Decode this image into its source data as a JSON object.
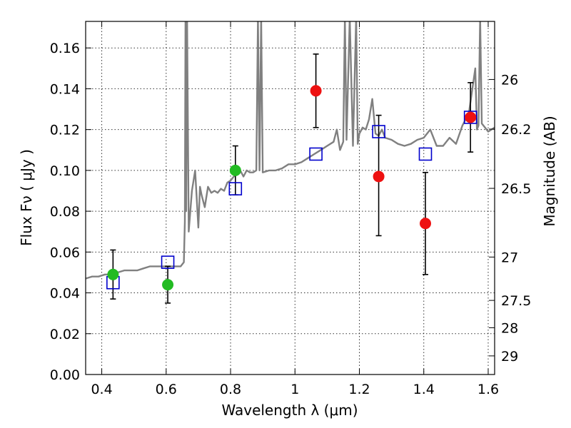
{
  "chart_data": {
    "type": "scatter",
    "title": "",
    "xlabel": "Wavelength  λ (μm)",
    "ylabel": "Flux  Fν  ( μJy )",
    "y2label": "Magnitude (AB)",
    "xlim": [
      0.35,
      1.62
    ],
    "ylim": [
      0.0,
      0.173
    ],
    "grid": true,
    "x_ticks": [
      0.4,
      0.6,
      0.8,
      1.0,
      1.2,
      1.4,
      1.6
    ],
    "x_tick_labels": [
      "0.4",
      "0.6",
      "0.8",
      "1",
      "1.2",
      "1.4",
      "1.6"
    ],
    "y_ticks": [
      0.0,
      0.02,
      0.04,
      0.06,
      0.08,
      0.1,
      0.12,
      0.14,
      0.16
    ],
    "y_tick_labels": [
      "0.00",
      "0.02",
      "0.04",
      "0.06",
      "0.08",
      "0.10",
      "0.12",
      "0.14",
      "0.16"
    ],
    "y2_ticks": [
      26,
      26.2,
      26.5,
      27,
      27.5,
      28,
      29
    ],
    "y2_tick_labels": [
      "26",
      "26.2",
      "26.5",
      "27",
      "27.5",
      "28",
      "29"
    ],
    "colors": {
      "spectrum": "#808080",
      "model": "#0000cc",
      "optical": "#22bb22",
      "infrared": "#ee1111",
      "errorbar": "#000000"
    },
    "series": [
      {
        "kind": "line",
        "style": "spectrum",
        "x": [
          0.35,
          0.37,
          0.39,
          0.41,
          0.43,
          0.45,
          0.47,
          0.49,
          0.51,
          0.53,
          0.55,
          0.57,
          0.59,
          0.61,
          0.63,
          0.645,
          0.655,
          0.658,
          0.66,
          0.662,
          0.665,
          0.67,
          0.68,
          0.69,
          0.7,
          0.705,
          0.71,
          0.72,
          0.73,
          0.74,
          0.75,
          0.76,
          0.77,
          0.78,
          0.79,
          0.8,
          0.81,
          0.82,
          0.83,
          0.84,
          0.85,
          0.86,
          0.87,
          0.88,
          0.885,
          0.89,
          0.895,
          0.9,
          0.92,
          0.94,
          0.96,
          0.98,
          1.0,
          1.02,
          1.04,
          1.06,
          1.08,
          1.1,
          1.12,
          1.13,
          1.14,
          1.15,
          1.155,
          1.16,
          1.17,
          1.18,
          1.19,
          1.195,
          1.2,
          1.21,
          1.22,
          1.23,
          1.24,
          1.25,
          1.26,
          1.27,
          1.28,
          1.3,
          1.32,
          1.34,
          1.36,
          1.38,
          1.4,
          1.42,
          1.44,
          1.46,
          1.48,
          1.5,
          1.52,
          1.54,
          1.56,
          1.565,
          1.57,
          1.575,
          1.58,
          1.59,
          1.6,
          1.62
        ],
        "y": [
          0.047,
          0.048,
          0.048,
          0.049,
          0.049,
          0.05,
          0.051,
          0.051,
          0.051,
          0.052,
          0.053,
          0.053,
          0.053,
          0.053,
          0.053,
          0.053,
          0.055,
          0.075,
          0.175,
          0.08,
          0.175,
          0.07,
          0.09,
          0.1,
          0.072,
          0.092,
          0.088,
          0.082,
          0.092,
          0.089,
          0.09,
          0.089,
          0.091,
          0.09,
          0.094,
          0.095,
          0.097,
          0.098,
          0.1,
          0.097,
          0.1,
          0.099,
          0.099,
          0.1,
          0.175,
          0.1,
          0.175,
          0.099,
          0.1,
          0.1,
          0.101,
          0.103,
          0.103,
          0.104,
          0.106,
          0.108,
          0.11,
          0.112,
          0.114,
          0.12,
          0.11,
          0.114,
          0.175,
          0.115,
          0.175,
          0.112,
          0.175,
          0.113,
          0.118,
          0.121,
          0.12,
          0.125,
          0.135,
          0.118,
          0.117,
          0.12,
          0.116,
          0.115,
          0.113,
          0.112,
          0.113,
          0.115,
          0.116,
          0.12,
          0.112,
          0.112,
          0.116,
          0.113,
          0.122,
          0.128,
          0.15,
          0.12,
          0.122,
          0.175,
          0.123,
          0.121,
          0.119,
          0.121
        ]
      },
      {
        "kind": "scatter",
        "style": "model",
        "marker": "square-open",
        "x": [
          0.435,
          0.605,
          0.815,
          1.065,
          1.26,
          1.405,
          1.545
        ],
        "y": [
          0.045,
          0.055,
          0.091,
          0.108,
          0.119,
          0.108,
          0.126
        ]
      },
      {
        "kind": "scatter",
        "style": "optical",
        "marker": "circle",
        "x": [
          0.435,
          0.605,
          0.815
        ],
        "y": [
          0.049,
          0.044,
          0.1
        ],
        "yerr_low": [
          0.012,
          0.009,
          0.012
        ],
        "yerr_high": [
          0.012,
          0.009,
          0.012
        ]
      },
      {
        "kind": "scatter",
        "style": "infrared",
        "marker": "circle",
        "x": [
          1.065,
          1.26,
          1.405,
          1.545
        ],
        "y": [
          0.139,
          0.097,
          0.074,
          0.126
        ],
        "yerr_low": [
          0.018,
          0.029,
          0.025,
          0.017
        ],
        "yerr_high": [
          0.018,
          0.03,
          0.025,
          0.017
        ]
      }
    ]
  }
}
